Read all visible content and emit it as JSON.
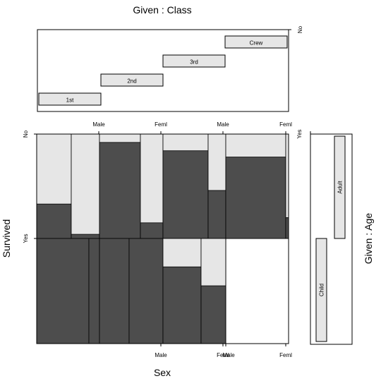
{
  "chart_data": {
    "type": "mosaic-coplot",
    "title": "Given : Class",
    "xlabel": "Sex",
    "ylabel": "Survived",
    "right_label": "Given : Age",
    "class_panel": {
      "levels": [
        "1st",
        "2nd",
        "3rd",
        "Crew"
      ],
      "axis_tick_label": "No"
    },
    "age_panel": {
      "levels": [
        "Child",
        "Adult"
      ],
      "axis_tick_label": "Yes"
    },
    "survived_levels": [
      "No",
      "Yes"
    ],
    "sex_tick_labels": [
      "Male",
      "Feml"
    ],
    "cells": [
      {
        "age": "Adult",
        "survived": "No",
        "class": "1st",
        "male": 0.33,
        "female": 0.04
      },
      {
        "age": "Adult",
        "survived": "No",
        "class": "2nd",
        "male": 0.92,
        "female": 0.15
      },
      {
        "age": "Adult",
        "survived": "No",
        "class": "3rd",
        "male": 0.84,
        "female": 0.46
      },
      {
        "age": "Adult",
        "survived": "No",
        "class": "Crew",
        "male": 0.78,
        "female": 0.2
      },
      {
        "age": "Adult",
        "survived": "Yes",
        "class": "1st",
        "male": 0.67,
        "female": 0.96
      },
      {
        "age": "Adult",
        "survived": "Yes",
        "class": "2nd",
        "male": 0.08,
        "female": 0.85
      },
      {
        "age": "Adult",
        "survived": "Yes",
        "class": "3rd",
        "male": 0.16,
        "female": 0.54
      },
      {
        "age": "Adult",
        "survived": "Yes",
        "class": "Crew",
        "male": 0.22,
        "female": 0.8
      },
      {
        "age": "Child",
        "survived": "No",
        "class": "1st",
        "male": 0.0,
        "female": 0.0
      },
      {
        "age": "Child",
        "survived": "No",
        "class": "2nd",
        "male": 0.0,
        "female": 0.0
      },
      {
        "age": "Child",
        "survived": "No",
        "class": "3rd",
        "male": 0.73,
        "female": 0.55
      },
      {
        "age": "Child",
        "survived": "Yes",
        "class": "1st",
        "male": 1.0,
        "female": 1.0
      },
      {
        "age": "Child",
        "survived": "Yes",
        "class": "2nd",
        "male": 1.0,
        "female": 1.0
      },
      {
        "age": "Child",
        "survived": "Yes",
        "class": "3rd",
        "male": 0.27,
        "female": 0.45
      }
    ],
    "colors": {
      "dark": "#4d4d4d",
      "light": "#e6e6e6",
      "frame": "#000000"
    },
    "grid": false
  }
}
